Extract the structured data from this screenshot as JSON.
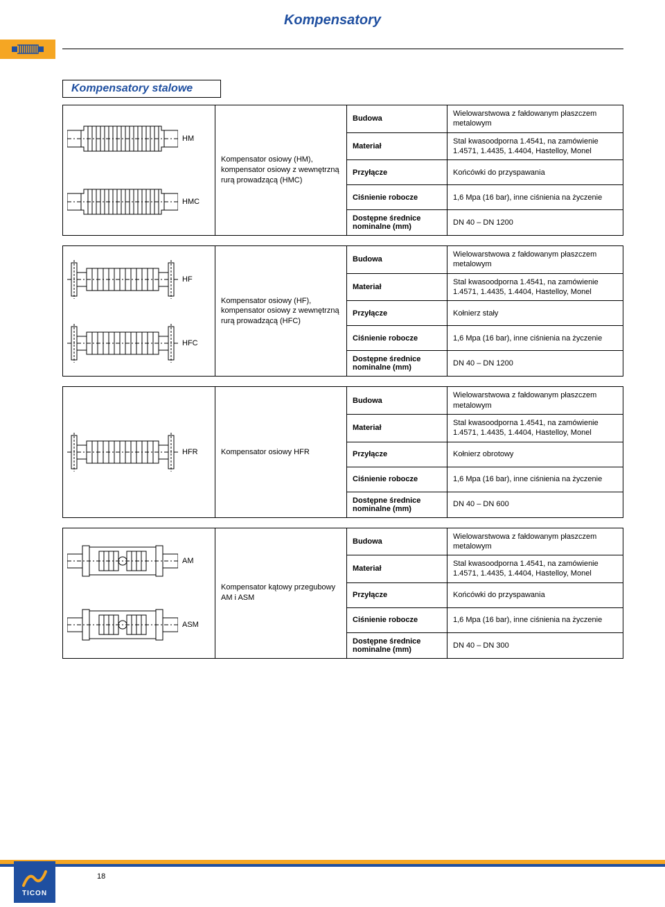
{
  "page_title": "Kompensatory",
  "section_title": "Kompensatory stalowe",
  "page_number": "18",
  "footer_logo_text": "TICON",
  "labels": {
    "budowa": "Budowa",
    "material": "Materiał",
    "przylacze": "Przyłącze",
    "cisnienie": "Ciśnienie robocze",
    "srednice": "Dostępne średnice nominalne (mm)"
  },
  "blocks": [
    {
      "img_labels": [
        "HM",
        "HMC"
      ],
      "img_kind": "axial_pair",
      "desc": "Kompensator osiowy (HM), kompensator osiowy z wewnętrzną rurą prowadzącą (HMC)",
      "rows": {
        "budowa": "Wielowarstwowa z fałdowanym płaszczem metalowym",
        "material": "Stal kwasoodporna 1.4541, na zamówienie 1.4571, 1.4435, 1.4404, Hastelloy, Monel",
        "przylacze": "Końcówki do przyspawania",
        "cisnienie": "1,6 Mpa (16 bar), inne ciśnienia na życzenie",
        "srednice": "DN 40 – DN 1200"
      }
    },
    {
      "img_labels": [
        "HF",
        "HFC"
      ],
      "img_kind": "flange_pair",
      "desc": "Kompensator osiowy (HF), kompensator osiowy z wewnętrzną rurą prowadzącą (HFC)",
      "rows": {
        "budowa": "Wielowarstwowa z fałdowanym płaszczem metalowym",
        "material": "Stal kwasoodporna 1.4541, na zamówienie 1.4571, 1.4435, 1.4404, Hastelloy, Monel",
        "przylacze": "Kołnierz stały",
        "cisnienie": "1,6 Mpa (16 bar), inne ciśnienia na życzenie",
        "srednice": "DN 40 – DN 1200"
      }
    },
    {
      "img_labels": [
        "HFR"
      ],
      "img_kind": "flange_single",
      "desc": "Kompensator osiowy HFR",
      "rows": {
        "budowa": "Wielowarstwowa z fałdowanym płaszczem metalowym",
        "material": "Stal kwasoodporna 1.4541, na zamówienie 1.4571, 1.4435, 1.4404, Hastelloy, Monel",
        "przylacze": "Kołnierz obrotowy",
        "cisnienie": "1,6 Mpa (16 bar), inne ciśnienia na życzenie",
        "srednice": "DN 40 – DN 600"
      }
    },
    {
      "img_labels": [
        "AM",
        "ASM"
      ],
      "img_kind": "angular_pair",
      "desc": "Kompensator kątowy przegubowy AM i ASM",
      "rows": {
        "budowa": "Wielowarstwowa z fałdowanym płaszczem metalowym",
        "material": "Stal kwasoodporna 1.4541, na zamówienie 1.4571, 1.4435, 1.4404, Hastelloy, Monel",
        "przylacze": "Końcówki do przyspawania",
        "cisnienie": "1,6 Mpa (16 bar), inne ciśnienia na życzenie",
        "srednice": "DN 40 – DN 300"
      }
    }
  ],
  "svg": {
    "stroke": "#000000",
    "fill": "#ffffff",
    "accent": "#1f4fa0",
    "yellow": "#f5a623"
  }
}
